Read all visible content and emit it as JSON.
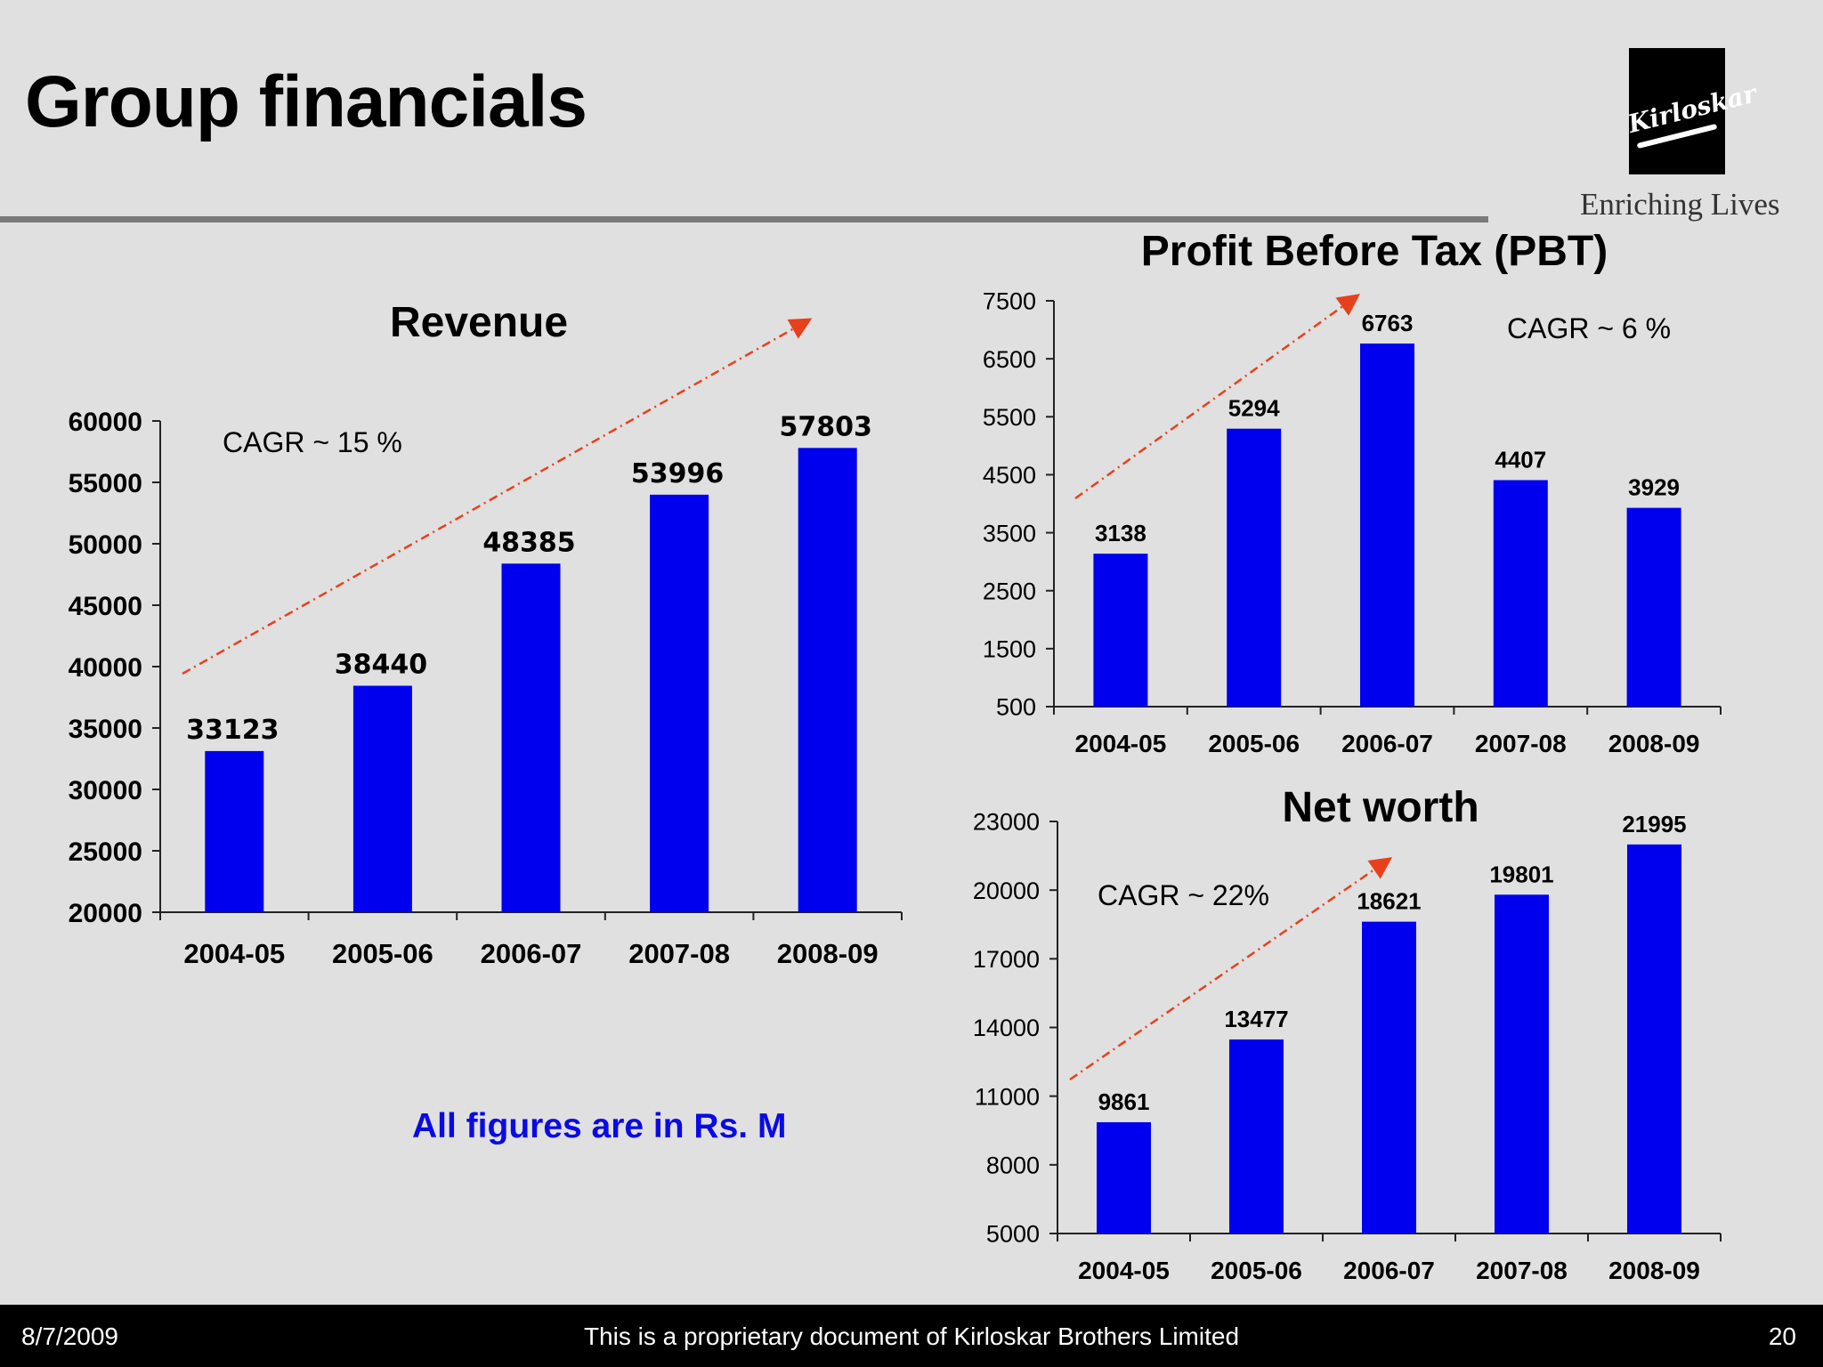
{
  "slide": {
    "title": "Group financials",
    "brand_logo_text": "Kirloskar",
    "tagline": "Enriching Lives",
    "note": "All figures are in Rs. M",
    "footer": {
      "date": "8/7/2009",
      "text": "This is a proprietary document of Kirloskar Brothers Limited",
      "page": "20"
    }
  },
  "colors": {
    "bar": "#0000ee",
    "trend_arrow": "#e8401c",
    "background": "#e0e0e0",
    "note_text": "#0a0ae6"
  },
  "chart_data": [
    {
      "type": "bar",
      "title": "Revenue",
      "annotation": "CAGR ~ 15 %",
      "categories": [
        "2004-05",
        "2005-06",
        "2006-07",
        "2007-08",
        "2008-09"
      ],
      "values": [
        33123,
        38440,
        48385,
        53996,
        57803
      ],
      "yticks": [
        20000,
        25000,
        30000,
        35000,
        40000,
        45000,
        50000,
        55000,
        60000
      ],
      "ylim": [
        20000,
        60000
      ],
      "grid": false,
      "data_labels": true,
      "trend_arrow": true
    },
    {
      "type": "bar",
      "title": "Profit Before Tax (PBT)",
      "annotation": "CAGR ~ 6 %",
      "categories": [
        "2004-05",
        "2005-06",
        "2006-07",
        "2007-08",
        "2008-09"
      ],
      "values": [
        3138,
        5294,
        6763,
        4407,
        3929
      ],
      "yticks": [
        500,
        1500,
        2500,
        3500,
        4500,
        5500,
        6500,
        7500
      ],
      "ylim": [
        500,
        7500
      ],
      "grid": false,
      "data_labels": true,
      "trend_arrow": true
    },
    {
      "type": "bar",
      "title": "Net worth",
      "annotation": "CAGR ~ 22%",
      "categories": [
        "2004-05",
        "2005-06",
        "2006-07",
        "2007-08",
        "2008-09"
      ],
      "values": [
        9861,
        13477,
        18621,
        19801,
        21995
      ],
      "yticks": [
        5000,
        8000,
        11000,
        14000,
        17000,
        20000,
        23000
      ],
      "ylim": [
        5000,
        23000
      ],
      "grid": false,
      "data_labels": true,
      "trend_arrow": true
    }
  ]
}
